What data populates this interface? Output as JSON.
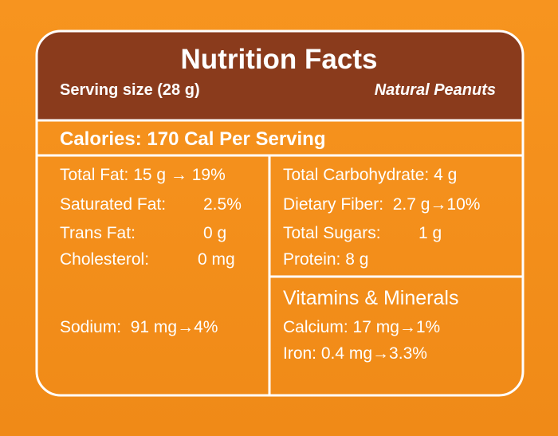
{
  "header": {
    "title": "Nutrition Facts",
    "serving_size": "Serving size (28 g)",
    "product": "Natural Peanuts"
  },
  "calories": "Calories: 170 Cal Per Serving",
  "left_column": {
    "rows": [
      {
        "text": "Total Fat: 15 g → 19%"
      },
      {
        "label": "Saturated Fat:",
        "value": "2.5%"
      },
      {
        "label": "Trans Fat:",
        "value": "0 g"
      },
      {
        "label": "Cholesterol:",
        "value": "0 mg"
      }
    ],
    "sodium": "Sodium:  91 mg→4%"
  },
  "right_column": {
    "rows": [
      {
        "text": "Total Carbohydrate: 4 g"
      },
      {
        "text": "Dietary Fiber:  2.7 g→10%"
      },
      {
        "label": "Total Sugars:",
        "value": "1 g"
      },
      {
        "text": "Protein: 8 g"
      }
    ],
    "vitamins": {
      "title": "Vitamins & Minerals",
      "rows": [
        "Calcium: 17 mg→1%",
        "Iron: 0.4 mg→3.3%"
      ]
    }
  }
}
